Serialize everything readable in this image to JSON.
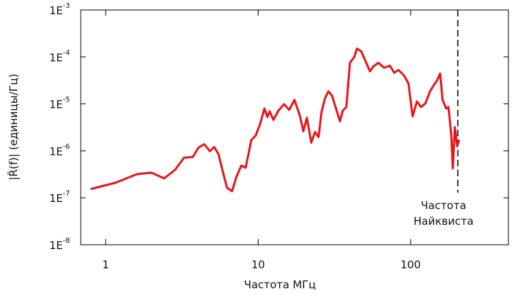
{
  "chart_data": {
    "type": "line",
    "xlabel": "Частота МГц",
    "ylabel": "|R̃(f)| (единицы/Гц)",
    "xscale": "log",
    "yscale": "log",
    "xlim": [
      0.686,
      438
    ],
    "ylim": [
      1e-08,
      0.001
    ],
    "xticks": [
      1,
      10,
      100
    ],
    "yticks": [
      {
        "value": 1e-08,
        "label": "1E",
        "exponent": "-8"
      },
      {
        "value": 1e-07,
        "label": "1E",
        "exponent": "-7"
      },
      {
        "value": 1e-06,
        "label": "1E",
        "exponent": "-6"
      },
      {
        "value": 1e-05,
        "label": "1E",
        "exponent": "-5"
      },
      {
        "value": 0.0001,
        "label": "1E",
        "exponent": "-4"
      },
      {
        "value": 0.001,
        "label": "1E",
        "exponent": "-3"
      }
    ],
    "series": [
      {
        "color": "#e8141a",
        "x": [
          0.797,
          1.163,
          1.607,
          1.994,
          2.42,
          2.85,
          3.27,
          3.73,
          4.06,
          4.43,
          4.83,
          5.15,
          5.5,
          5.86,
          6.25,
          6.74,
          7.2,
          7.76,
          8.28,
          9.03,
          9.63,
          10.3,
          11.0,
          11.5,
          11.9,
          12.6,
          13.6,
          14.8,
          16.0,
          17.3,
          18.8,
          19.8,
          20.9,
          22.3,
          23.6,
          24.9,
          26.0,
          27.4,
          28.9,
          30.5,
          32.2,
          34.4,
          35.9,
          37.9,
          40.0,
          42.7,
          44.5,
          47.5,
          50.7,
          54.1,
          57.0,
          61.5,
          67.1,
          73.1,
          78.0,
          83.2,
          90.7,
          96.8,
          103,
          110,
          117,
          125,
          134,
          143,
          149,
          156,
          162,
          171,
          177,
          185,
          189,
          195,
          202,
          208
        ],
        "values": [
          1.53e-07,
          2.1e-07,
          3.2e-07,
          3.43e-07,
          2.59e-07,
          3.94e-07,
          7.15e-07,
          7.4e-07,
          1.17e-06,
          1.39e-06,
          9.8e-07,
          1.21e-06,
          8.5e-07,
          3.67e-07,
          1.64e-07,
          1.38e-07,
          2.78e-07,
          4.86e-07,
          4.38e-07,
          1.71e-06,
          2.11e-06,
          3.7e-06,
          8e-06,
          5.25e-06,
          6.95e-06,
          4.57e-06,
          7.2e-06,
          9.86e-06,
          7.45e-06,
          1.22e-05,
          5.6e-06,
          2.61e-06,
          5.07e-06,
          1.49e-06,
          2.52e-06,
          1.97e-06,
          6.48e-06,
          1.3e-05,
          1.85e-05,
          1.5e-05,
          8.57e-06,
          4.26e-06,
          7.2e-06,
          8.57e-06,
          7.5e-05,
          9.93e-05,
          0.000151,
          0.000131,
          8.05e-05,
          4.93e-05,
          6.3e-05,
          7.5e-05,
          5.88e-05,
          6.53e-05,
          4.6e-05,
          5.29e-05,
          4e-05,
          2.72e-05,
          5.44e-06,
          1.13e-05,
          8.57e-06,
          1.02e-05,
          1.85e-05,
          2.62e-05,
          3.13e-05,
          4.44e-05,
          1.22e-05,
          8e-06,
          8.57e-06,
          2.11e-06,
          4.23e-07,
          3.22e-06,
          1.25e-06,
          1.71e-06
        ]
      }
    ],
    "annotations": [
      {
        "x": 204,
        "text": [
          "Частота",
          "Найквиста"
        ]
      }
    ]
  }
}
